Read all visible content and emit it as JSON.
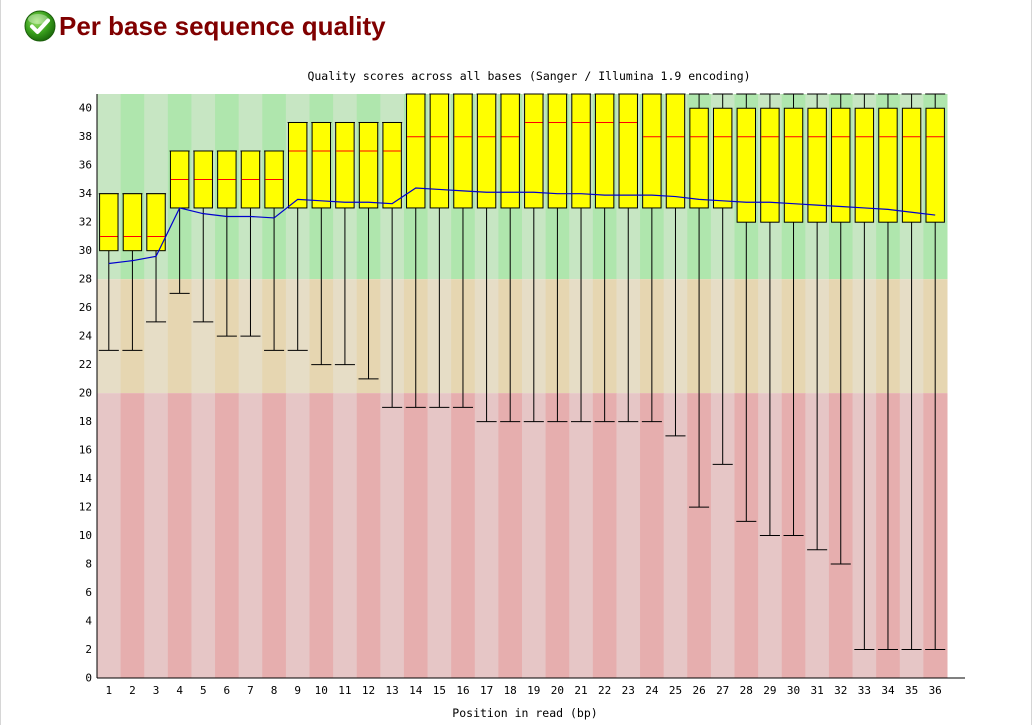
{
  "module": {
    "title": "Per base sequence quality",
    "status_icon": "pass-check-icon",
    "status": "pass"
  },
  "chart_data": {
    "type": "boxplot",
    "title": "Quality scores across all bases (Sanger / Illumina 1.9 encoding)",
    "xlabel": "Position in read (bp)",
    "ylabel": "",
    "ylim": [
      0,
      41
    ],
    "yticks": [
      0,
      2,
      4,
      6,
      8,
      10,
      12,
      14,
      16,
      18,
      20,
      22,
      24,
      26,
      28,
      30,
      32,
      34,
      36,
      38,
      40
    ],
    "categories": [
      "1",
      "2",
      "3",
      "4",
      "5",
      "6",
      "7",
      "8",
      "9",
      "10",
      "11",
      "12",
      "13",
      "14",
      "15",
      "16",
      "17",
      "18",
      "19",
      "20",
      "21",
      "22",
      "23",
      "24",
      "25",
      "26",
      "27",
      "28",
      "29",
      "30",
      "31",
      "32",
      "33",
      "34",
      "35",
      "36"
    ],
    "bands": [
      {
        "name": "good",
        "from": 28,
        "to": 41,
        "color_light": "#c7e6c3",
        "color_dark": "#afe6ad"
      },
      {
        "name": "reasonable",
        "from": 20,
        "to": 28,
        "color_light": "#e6ddc6",
        "color_dark": "#e6d6b1"
      },
      {
        "name": "poor",
        "from": 0,
        "to": 20,
        "color_light": "#e6c6c6",
        "color_dark": "#e6aeae"
      }
    ],
    "colors": {
      "box": "#ffff00",
      "median": "#ff0000",
      "mean": "#0000cc",
      "whisker": "#000000"
    },
    "series": [
      {
        "name": "lower_whisker",
        "values": [
          23,
          23,
          25,
          27,
          25,
          24,
          24,
          23,
          23,
          22,
          22,
          21,
          19,
          19,
          19,
          19,
          18,
          18,
          18,
          18,
          18,
          18,
          18,
          18,
          17,
          12,
          15,
          11,
          10,
          10,
          9,
          8,
          2,
          2,
          2,
          2
        ]
      },
      {
        "name": "q1",
        "values": [
          30,
          30,
          30,
          33,
          33,
          33,
          33,
          33,
          33,
          33,
          33,
          33,
          33,
          33,
          33,
          33,
          33,
          33,
          33,
          33,
          33,
          33,
          33,
          33,
          33,
          33,
          33,
          32,
          32,
          32,
          32,
          32,
          32,
          32,
          32,
          32
        ]
      },
      {
        "name": "median",
        "values": [
          31,
          31,
          31,
          35,
          35,
          35,
          35,
          35,
          37,
          37,
          37,
          37,
          37,
          38,
          38,
          38,
          38,
          38,
          39,
          39,
          39,
          39,
          39,
          38,
          38,
          38,
          38,
          38,
          38,
          38,
          38,
          38,
          38,
          38,
          38,
          38
        ]
      },
      {
        "name": "q3",
        "values": [
          34,
          34,
          34,
          37,
          37,
          37,
          37,
          37,
          39,
          39,
          39,
          39,
          39,
          41,
          41,
          41,
          41,
          41,
          41,
          41,
          41,
          41,
          41,
          41,
          41,
          40,
          40,
          40,
          40,
          40,
          40,
          40,
          40,
          40,
          40,
          40
        ]
      },
      {
        "name": "upper_whisker",
        "values": [
          34,
          34,
          34,
          37,
          37,
          37,
          37,
          37,
          39,
          39,
          39,
          39,
          39,
          41,
          41,
          41,
          41,
          41,
          41,
          41,
          41,
          41,
          41,
          41,
          41,
          41,
          41,
          41,
          41,
          41,
          41,
          41,
          41,
          41,
          41,
          41
        ]
      },
      {
        "name": "mean",
        "values": [
          29.1,
          29.3,
          29.6,
          33.0,
          32.6,
          32.4,
          32.4,
          32.3,
          33.6,
          33.5,
          33.4,
          33.4,
          33.3,
          34.4,
          34.3,
          34.2,
          34.1,
          34.1,
          34.1,
          34.0,
          34.0,
          33.9,
          33.9,
          33.9,
          33.8,
          33.6,
          33.5,
          33.4,
          33.4,
          33.3,
          33.2,
          33.1,
          33.0,
          32.9,
          32.7,
          32.5
        ]
      }
    ]
  }
}
